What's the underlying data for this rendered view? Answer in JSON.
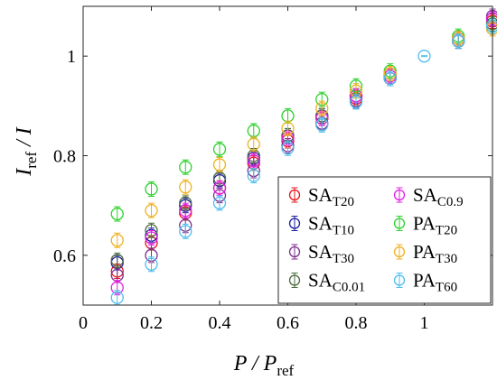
{
  "chart_data": {
    "type": "scatter",
    "title": "",
    "xlabel": {
      "main": "P / P",
      "sub": "ref"
    },
    "ylabel": {
      "main": "I",
      "sub": "ref",
      "tail": " / I"
    },
    "xlim": [
      0,
      1.2
    ],
    "ylim": [
      0.5,
      1.1
    ],
    "xticks": [
      0,
      0.2,
      0.4,
      0.6,
      0.8,
      1
    ],
    "xtick_labels": [
      "0",
      "0.2",
      "0.4",
      "0.6",
      "0.8",
      "1"
    ],
    "yticks": [
      0.6,
      0.8,
      1
    ],
    "ytick_labels": [
      "0.6",
      "0.8",
      "1"
    ],
    "grid": false,
    "legend_position": "bottom-right",
    "x": [
      0.1,
      0.2,
      0.3,
      0.4,
      0.5,
      0.6,
      0.7,
      0.8,
      0.9,
      1.1,
      1.2
    ],
    "reference_point": {
      "x": 1.0,
      "y": 1.0,
      "color": "#4DBEEE"
    },
    "series": [
      {
        "name": "SA",
        "sub": "T20",
        "color": "#E8131B",
        "values": [
          0.568,
          0.625,
          0.685,
          0.735,
          0.785,
          0.83,
          0.875,
          0.915,
          0.96,
          1.035,
          1.07
        ]
      },
      {
        "name": "SA",
        "sub": "T10",
        "color": "#1F1F9F",
        "values": [
          0.585,
          0.64,
          0.7,
          0.75,
          0.795,
          0.84,
          0.88,
          0.92,
          0.955,
          1.03,
          1.075
        ]
      },
      {
        "name": "SA",
        "sub": "T30",
        "color": "#7E2F8E",
        "values": [
          0.56,
          0.6,
          0.66,
          0.72,
          0.77,
          0.82,
          0.865,
          0.91,
          0.955,
          1.03,
          1.08
        ]
      },
      {
        "name": "SA",
        "sub": "C0.01",
        "color": "#4A6B3C",
        "values": [
          0.59,
          0.65,
          0.705,
          0.755,
          0.8,
          0.84,
          0.88,
          0.92,
          0.965,
          1.035,
          1.065
        ]
      },
      {
        "name": "SA",
        "sub": "C0.9",
        "color": "#E61EE6",
        "values": [
          0.535,
          0.635,
          0.69,
          0.735,
          0.79,
          0.835,
          0.875,
          0.92,
          0.96,
          1.035,
          1.075
        ]
      },
      {
        "name": "PA",
        "sub": "T20",
        "color": "#2BD12B",
        "values": [
          0.683,
          0.733,
          0.777,
          0.813,
          0.85,
          0.88,
          0.913,
          0.94,
          0.97,
          1.04,
          1.06
        ]
      },
      {
        "name": "PA",
        "sub": "T30",
        "color": "#EDB120",
        "values": [
          0.63,
          0.69,
          0.737,
          0.782,
          0.823,
          0.855,
          0.895,
          0.93,
          0.965,
          1.035,
          1.055
        ]
      },
      {
        "name": "PA",
        "sub": "T60",
        "color": "#4DBEEE",
        "values": [
          0.515,
          0.582,
          0.648,
          0.705,
          0.76,
          0.815,
          0.862,
          0.908,
          0.955,
          1.03,
          1.06
        ]
      }
    ],
    "legend": [
      {
        "name": "SA",
        "sub": "T20"
      },
      {
        "name": "SA",
        "sub": "C0.9"
      },
      {
        "name": "SA",
        "sub": "T10"
      },
      {
        "name": "PA",
        "sub": "T20"
      },
      {
        "name": "SA",
        "sub": "T30"
      },
      {
        "name": "PA",
        "sub": "T30"
      },
      {
        "name": "SA",
        "sub": "C0.01"
      },
      {
        "name": "PA",
        "sub": "T60"
      }
    ]
  }
}
